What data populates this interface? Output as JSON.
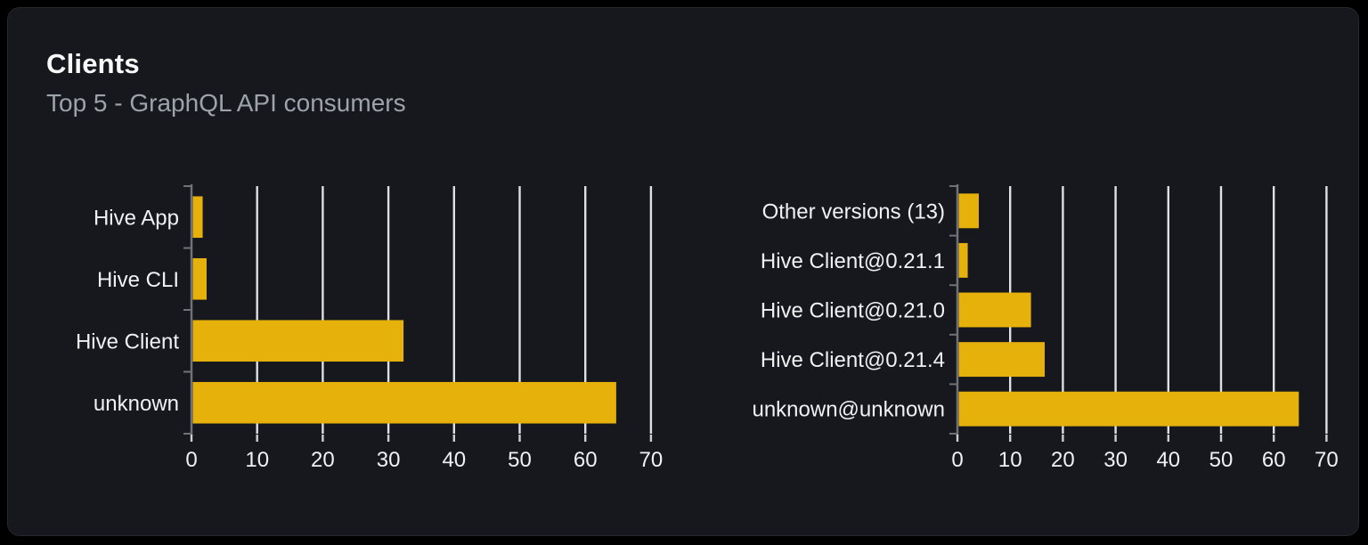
{
  "header": {
    "title": "Clients",
    "subtitle": "Top 5 - GraphQL API consumers"
  },
  "colors": {
    "page_bg": "#000000",
    "card_bg": "#16181d",
    "card_border": "#24272e",
    "bar": "#e7b10c",
    "gridline": "#dfe0e5",
    "axis": "#6f7278",
    "x_tick": "#cfd0d5",
    "label_text": "#f0f1f3",
    "tick_text": "#f0f1f3",
    "title_text": "#fafafa",
    "subtitle_text": "#9da3ab"
  },
  "chart_data": [
    {
      "type": "bar",
      "orientation": "horizontal",
      "categories": [
        "Hive App",
        "Hive CLI",
        "Hive Client",
        "unknown"
      ],
      "values": [
        1.5,
        2.1,
        32.1,
        64.5
      ],
      "x_ticks": [
        0,
        10,
        20,
        30,
        40,
        50,
        60,
        70
      ],
      "xlim": [
        0,
        71.5
      ],
      "grid": true,
      "legend": false
    },
    {
      "type": "bar",
      "orientation": "horizontal",
      "categories": [
        "Other versions (13)",
        "Hive Client@0.21.1",
        "Hive Client@0.21.0",
        "Hive Client@0.21.4",
        "unknown@unknown"
      ],
      "values": [
        3.8,
        1.7,
        13.7,
        16.3,
        64.5
      ],
      "x_ticks": [
        0,
        10,
        20,
        30,
        40,
        50,
        60,
        70
      ],
      "xlim": [
        0,
        71.5
      ],
      "grid": true,
      "legend": false
    }
  ]
}
